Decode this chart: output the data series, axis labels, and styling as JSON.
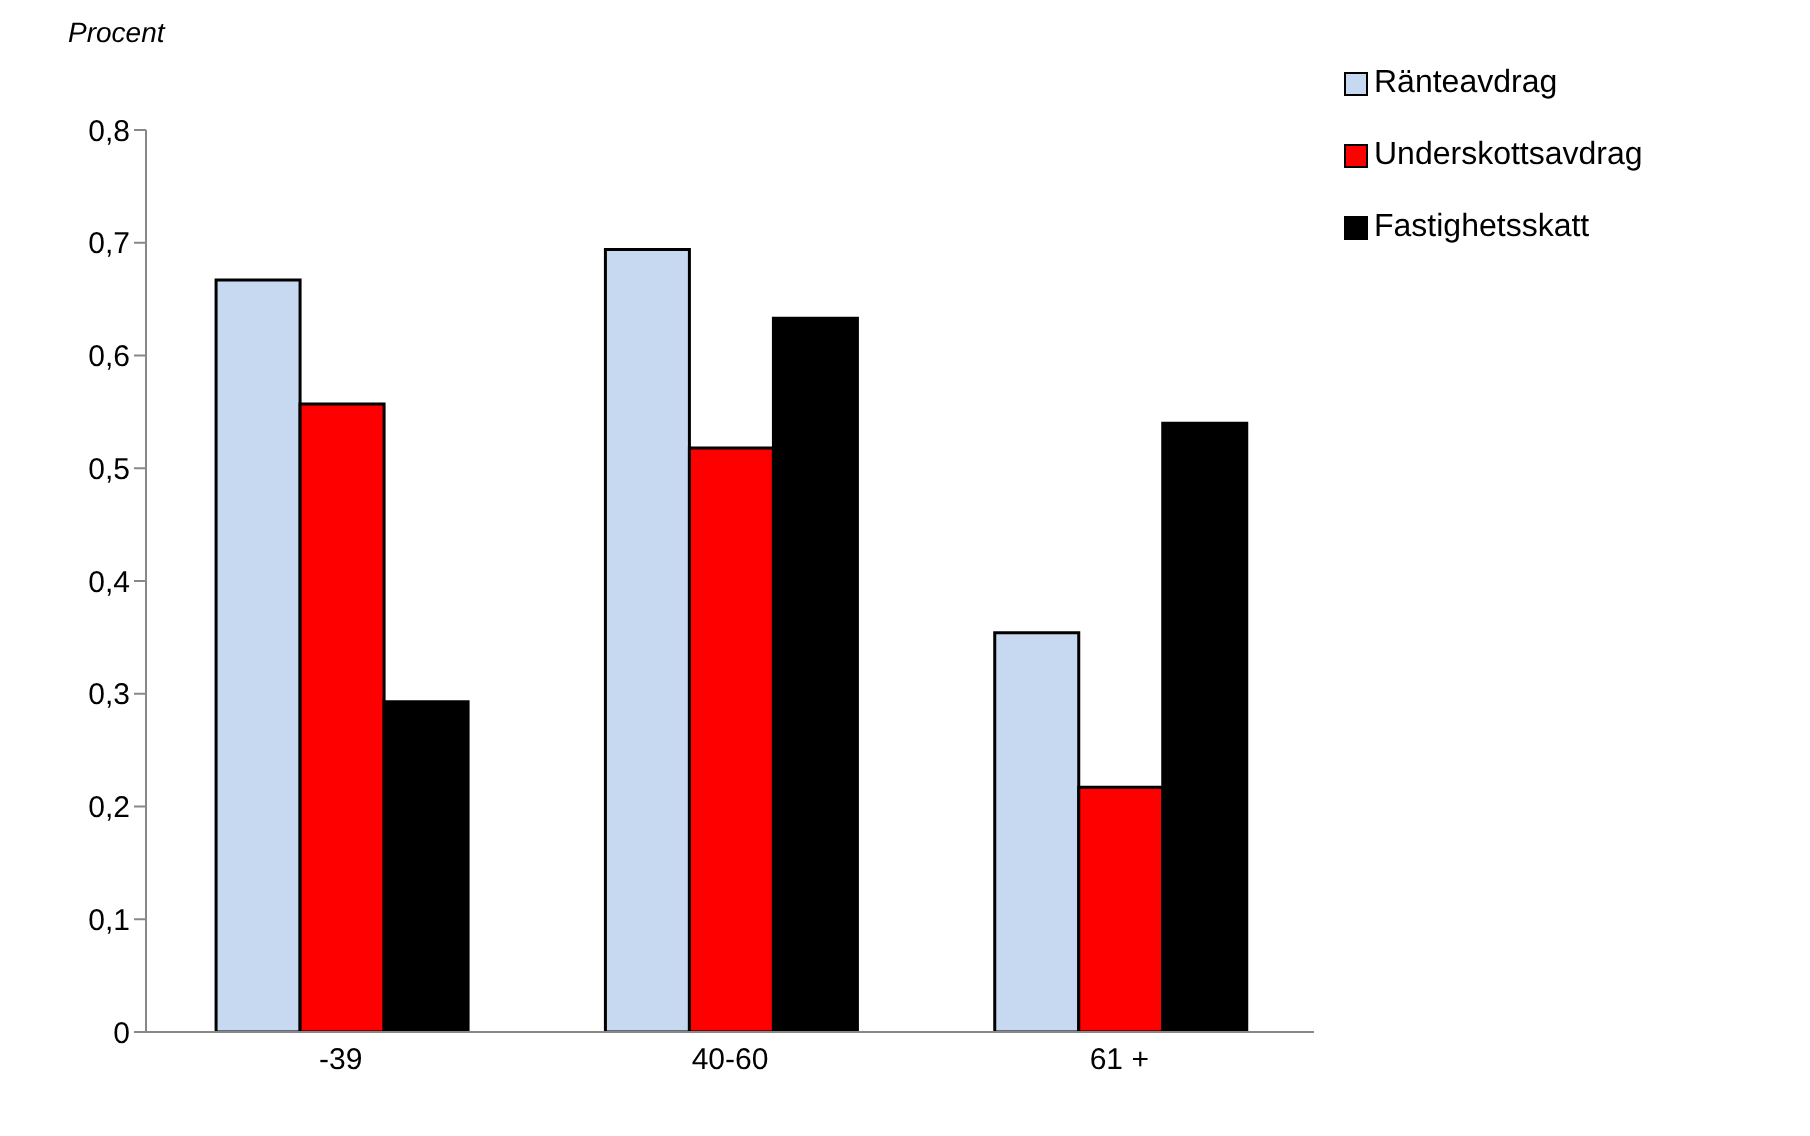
{
  "chart_data": {
    "type": "bar",
    "ylabel": "Procent",
    "categories": [
      "-39",
      "40-60",
      "61 +"
    ],
    "series": [
      {
        "name": "Ränteavdrag",
        "color": "#c6d9f1",
        "values": [
          0.667,
          0.694,
          0.354
        ]
      },
      {
        "name": "Underskottsavdrag",
        "color": "#ff0000",
        "values": [
          0.557,
          0.518,
          0.217
        ]
      },
      {
        "name": "Fastighetsskatt",
        "color": "#000000",
        "values": [
          0.293,
          0.633,
          0.54
        ]
      }
    ],
    "ylim": [
      0,
      0.8
    ],
    "yticks": [
      {
        "value": 0,
        "label": "0"
      },
      {
        "value": 0.1,
        "label": "0,1"
      },
      {
        "value": 0.2,
        "label": "0,2"
      },
      {
        "value": 0.3,
        "label": "0,3"
      },
      {
        "value": 0.4,
        "label": "0,4"
      },
      {
        "value": 0.5,
        "label": "0,5"
      },
      {
        "value": 0.6,
        "label": "0,6"
      },
      {
        "value": 0.7,
        "label": "0,7"
      },
      {
        "value": 0.8,
        "label": "0,8"
      }
    ],
    "grid": false,
    "legend": "top right"
  }
}
